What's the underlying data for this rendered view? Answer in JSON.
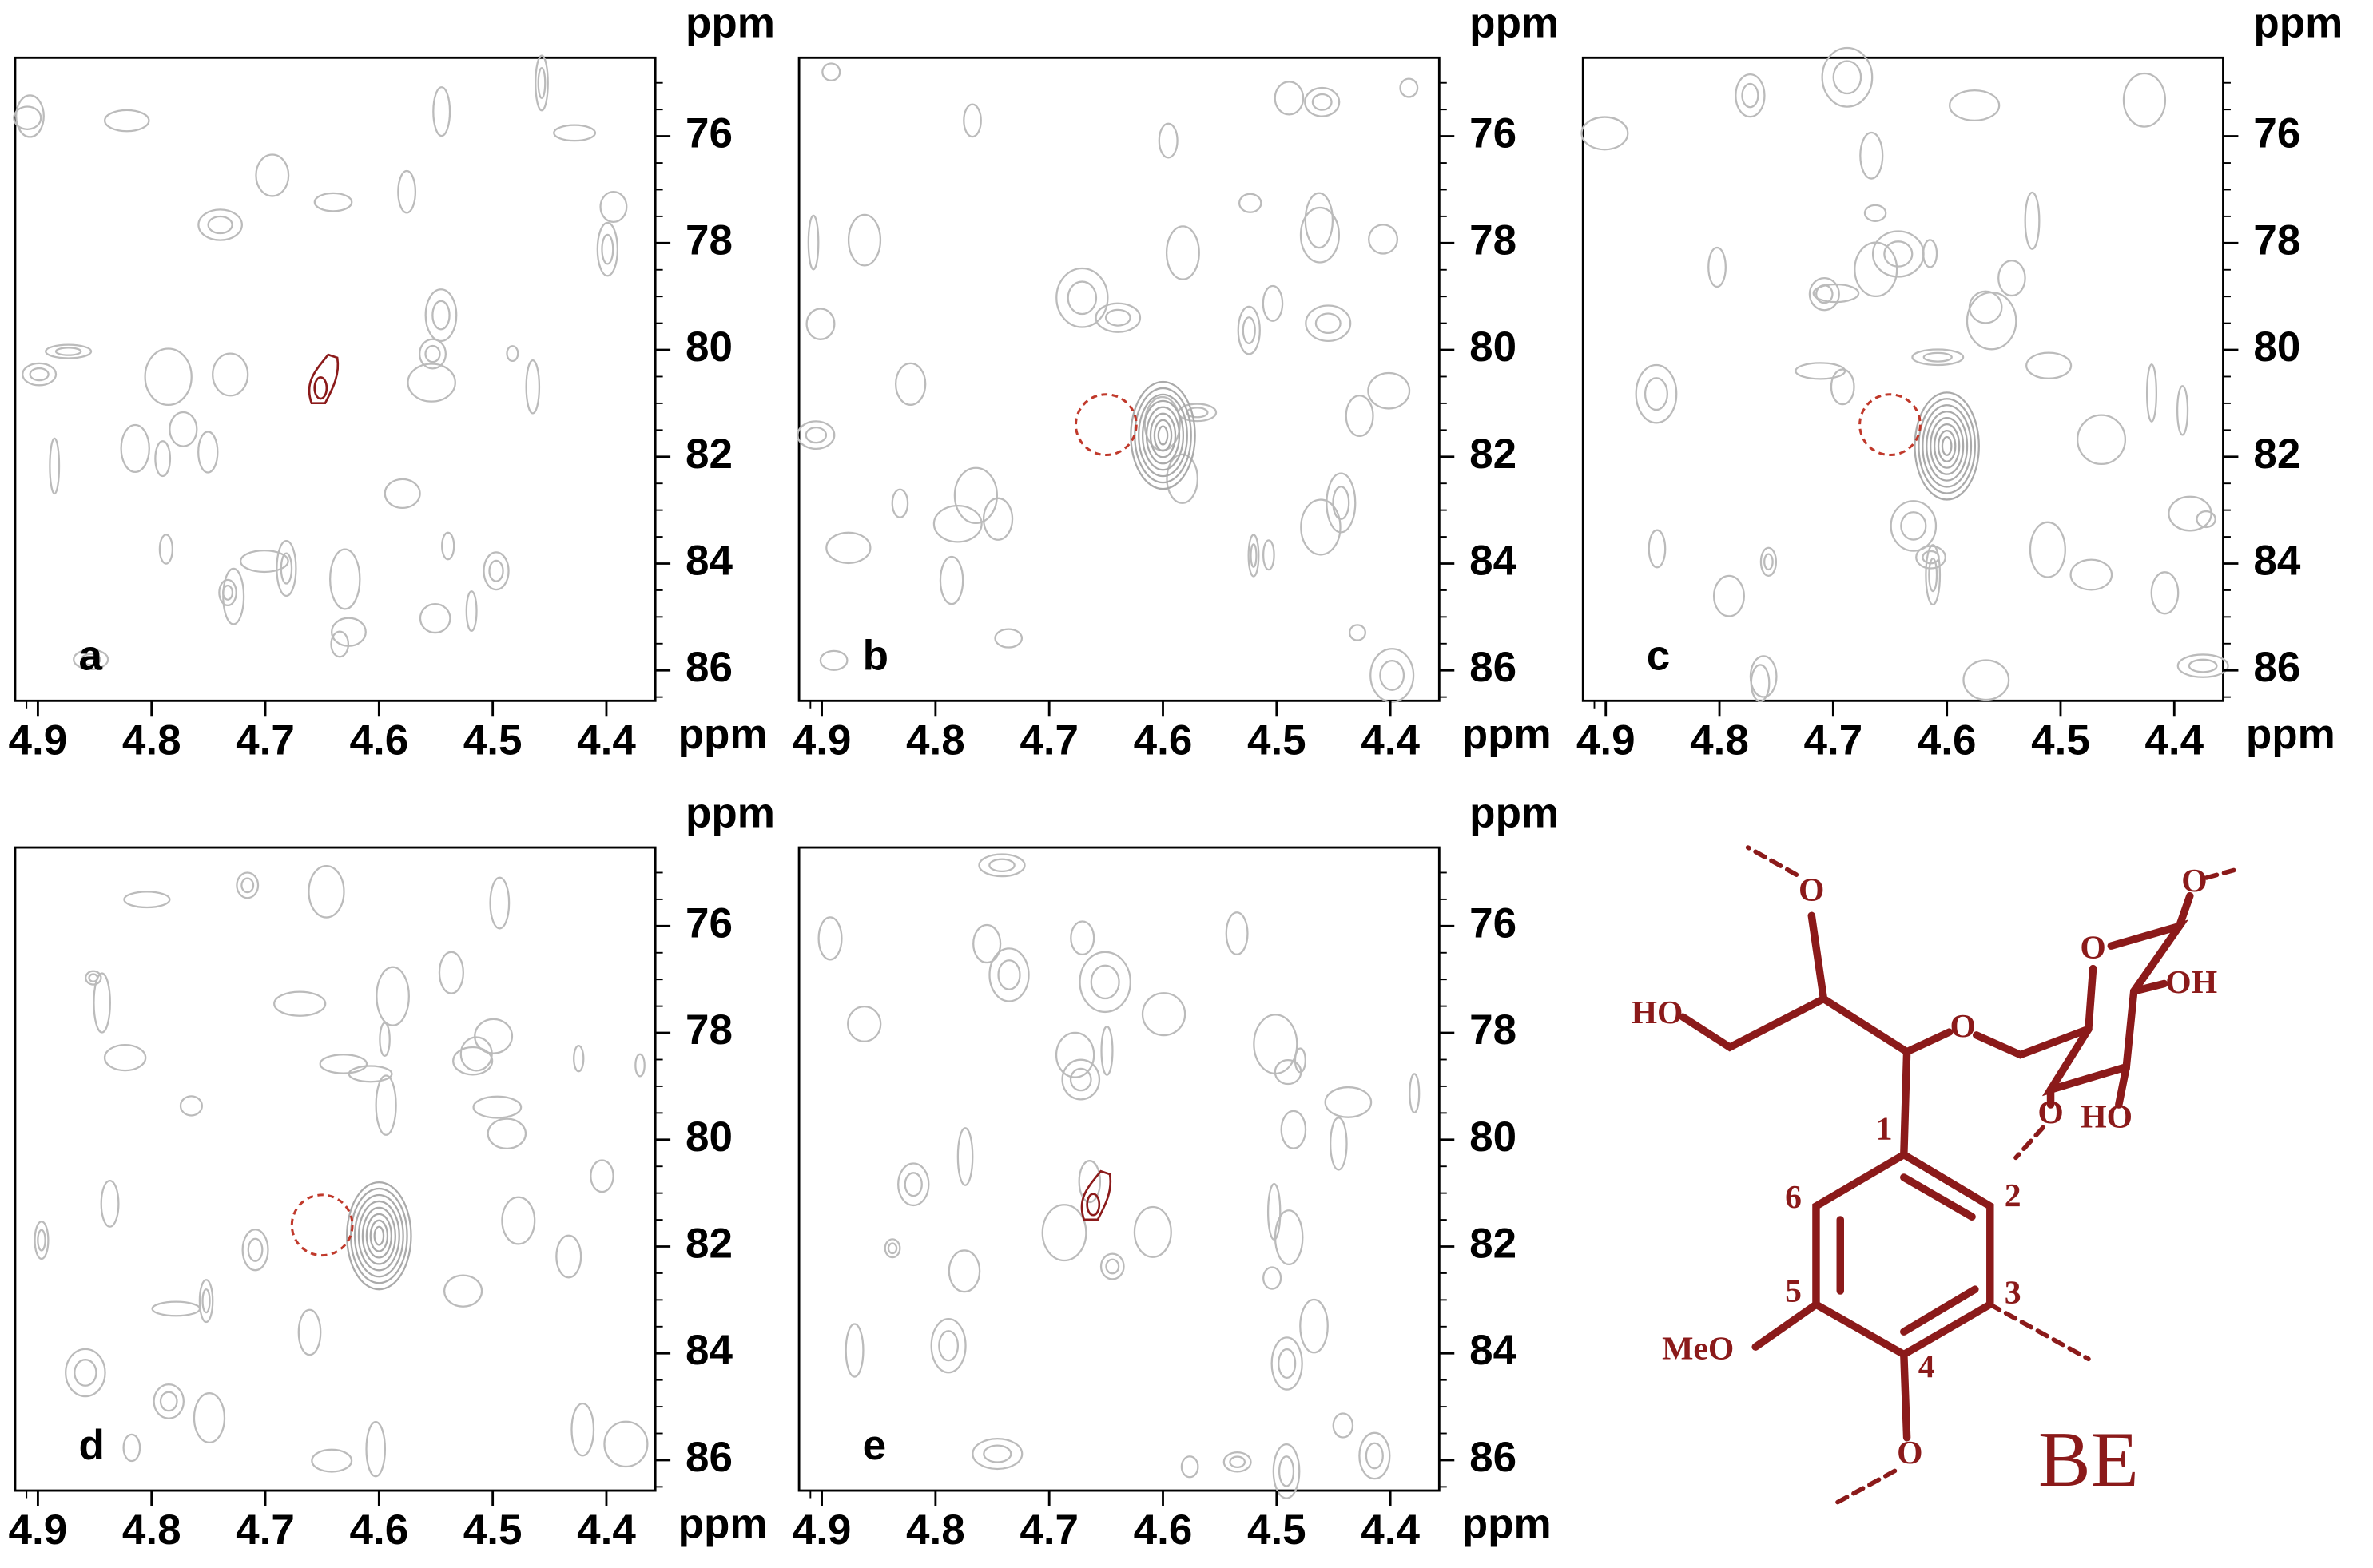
{
  "chart_data": [
    {
      "type": "contour",
      "label": "a",
      "xlabel": "ppm",
      "ylabel": "ppm",
      "xlim": [
        4.92,
        4.357
      ],
      "ylim": [
        86.57,
        74.53
      ],
      "xticks": [
        4.9,
        4.8,
        4.7,
        4.6,
        4.5,
        4.4
      ],
      "yticks": [
        76,
        78,
        80,
        82,
        84,
        86
      ],
      "signals": [
        {
          "x": 4.65,
          "y": 80.6,
          "color": "#8b1a1a",
          "style": "contour"
        }
      ]
    },
    {
      "type": "contour",
      "label": "b",
      "xlabel": "ppm",
      "ylabel": "ppm",
      "xlim": [
        4.92,
        4.357
      ],
      "ylim": [
        86.57,
        74.53
      ],
      "xticks": [
        4.9,
        4.8,
        4.7,
        4.6,
        4.5,
        4.4
      ],
      "yticks": [
        76,
        78,
        80,
        82,
        84,
        86
      ],
      "signals": [
        {
          "x": 4.6,
          "y": 81.6,
          "color": "#aaaaaa",
          "style": "peak"
        },
        {
          "x": 4.65,
          "y": 81.4,
          "color": "#c0392b",
          "style": "dashed-circle"
        }
      ]
    },
    {
      "type": "contour",
      "label": "c",
      "xlabel": "ppm",
      "ylabel": "ppm",
      "xlim": [
        4.92,
        4.357
      ],
      "ylim": [
        86.57,
        74.53
      ],
      "xticks": [
        4.9,
        4.8,
        4.7,
        4.6,
        4.5,
        4.4
      ],
      "yticks": [
        76,
        78,
        80,
        82,
        84,
        86
      ],
      "signals": [
        {
          "x": 4.6,
          "y": 81.8,
          "color": "#aaaaaa",
          "style": "peak"
        },
        {
          "x": 4.65,
          "y": 81.4,
          "color": "#c0392b",
          "style": "dashed-circle"
        }
      ]
    },
    {
      "type": "contour",
      "label": "d",
      "xlabel": "ppm",
      "ylabel": "ppm",
      "xlim": [
        4.92,
        4.357
      ],
      "ylim": [
        86.57,
        74.53
      ],
      "xticks": [
        4.9,
        4.8,
        4.7,
        4.6,
        4.5,
        4.4
      ],
      "yticks": [
        76,
        78,
        80,
        82,
        84,
        86
      ],
      "signals": [
        {
          "x": 4.6,
          "y": 81.8,
          "color": "#aaaaaa",
          "style": "peak"
        },
        {
          "x": 4.65,
          "y": 81.6,
          "color": "#c0392b",
          "style": "dashed-circle"
        }
      ]
    },
    {
      "type": "contour",
      "label": "e",
      "xlabel": "ppm",
      "ylabel": "ppm",
      "xlim": [
        4.92,
        4.357
      ],
      "ylim": [
        86.57,
        74.53
      ],
      "xticks": [
        4.9,
        4.8,
        4.7,
        4.6,
        4.5,
        4.4
      ],
      "yticks": [
        76,
        78,
        80,
        82,
        84,
        86
      ],
      "signals": [
        {
          "x": 4.66,
          "y": 81.1,
          "color": "#8b1a1a",
          "style": "contour"
        }
      ]
    }
  ],
  "structure": {
    "name": "BE",
    "color": "#8b1a1a",
    "atoms": [
      "1",
      "2",
      "3",
      "4",
      "5",
      "6"
    ],
    "groups": [
      "O",
      "HO",
      "O",
      "O",
      "OH",
      "HO",
      "O",
      "MeO",
      "O",
      "O"
    ]
  }
}
